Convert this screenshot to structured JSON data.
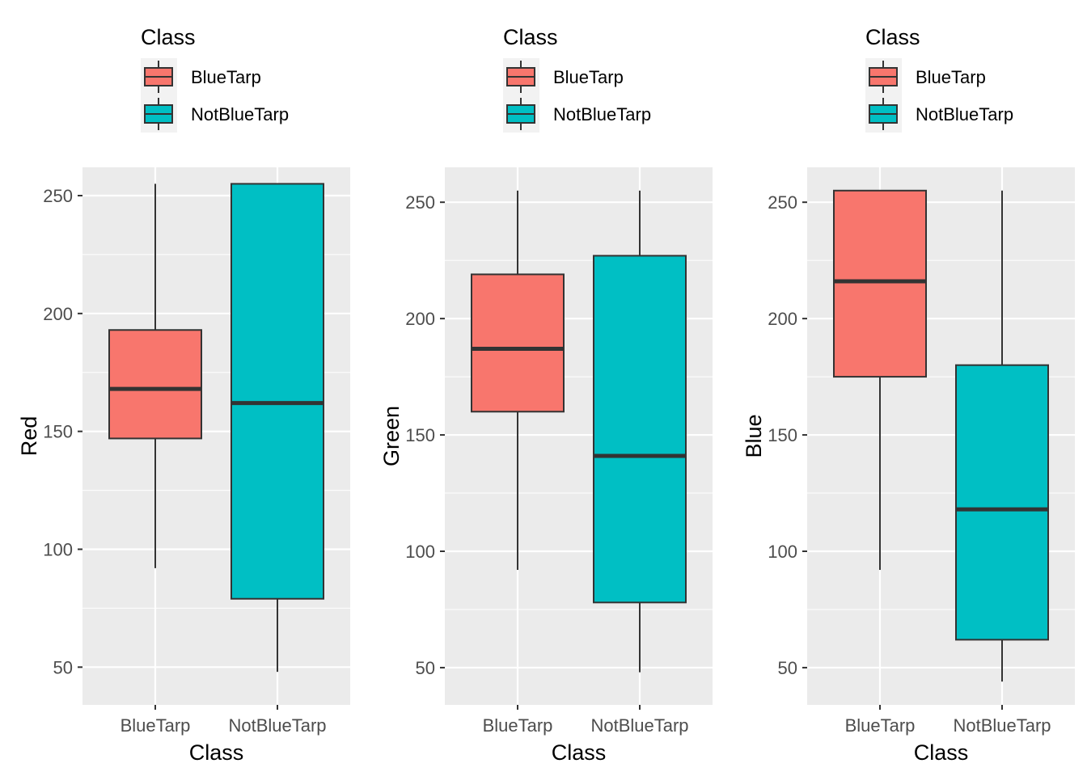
{
  "chart_data": [
    {
      "type": "boxplot",
      "xlabel": "Class",
      "ylabel": "Red",
      "ylim": [
        34,
        262
      ],
      "yticks": [
        50,
        100,
        150,
        200,
        250
      ],
      "categories": [
        "BlueTarp",
        "NotBlueTarp"
      ],
      "boxes": [
        {
          "category": "BlueTarp",
          "min": 92,
          "q1": 147,
          "median": 168,
          "q3": 193,
          "max": 255
        },
        {
          "category": "NotBlueTarp",
          "min": 48,
          "q1": 79,
          "median": 162,
          "q3": 255,
          "max": 255
        }
      ],
      "legend": {
        "title": "Class",
        "entries": [
          "BlueTarp",
          "NotBlueTarp"
        ],
        "position": "top"
      }
    },
    {
      "type": "boxplot",
      "xlabel": "Class",
      "ylabel": "Green",
      "ylim": [
        34,
        265
      ],
      "yticks": [
        50,
        100,
        150,
        200,
        250
      ],
      "categories": [
        "BlueTarp",
        "NotBlueTarp"
      ],
      "boxes": [
        {
          "category": "BlueTarp",
          "min": 92,
          "q1": 160,
          "median": 187,
          "q3": 219,
          "max": 255
        },
        {
          "category": "NotBlueTarp",
          "min": 48,
          "q1": 78,
          "median": 141,
          "q3": 227,
          "max": 255
        }
      ],
      "legend": {
        "title": "Class",
        "entries": [
          "BlueTarp",
          "NotBlueTarp"
        ],
        "position": "top"
      }
    },
    {
      "type": "boxplot",
      "xlabel": "Class",
      "ylabel": "Blue",
      "ylim": [
        34,
        265
      ],
      "yticks": [
        50,
        100,
        150,
        200,
        250
      ],
      "categories": [
        "BlueTarp",
        "NotBlueTarp"
      ],
      "boxes": [
        {
          "category": "BlueTarp",
          "min": 92,
          "q1": 175,
          "median": 216,
          "q3": 255,
          "max": 255
        },
        {
          "category": "NotBlueTarp",
          "min": 44,
          "q1": 62,
          "median": 118,
          "q3": 180,
          "max": 255
        }
      ],
      "legend": {
        "title": "Class",
        "entries": [
          "BlueTarp",
          "NotBlueTarp"
        ],
        "position": "top"
      }
    }
  ],
  "colors": {
    "BlueTarp": "#F8766D",
    "NotBlueTarp": "#00BFC4",
    "panel_background": "#EBEBEB",
    "grid": "#FFFFFF",
    "box_outline": "#333333"
  }
}
